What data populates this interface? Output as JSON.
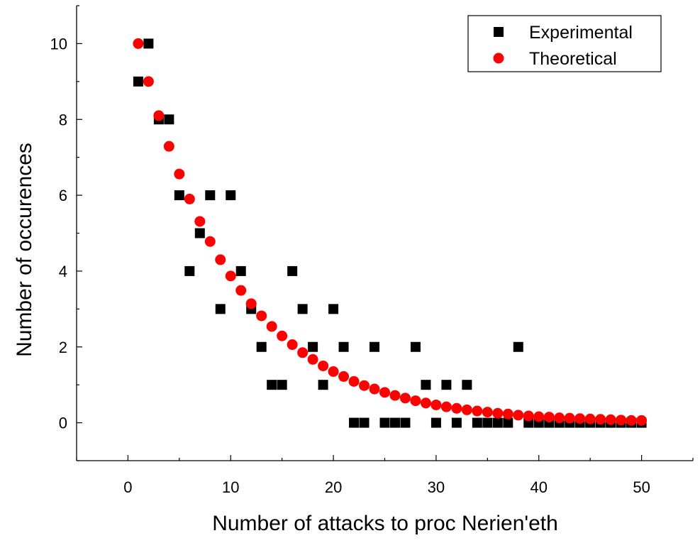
{
  "chart_data": {
    "type": "scatter",
    "title": "",
    "xlabel": "Number of attacks to proc Nerien'eth",
    "ylabel": "Number of occurences",
    "xlim": [
      -5,
      55
    ],
    "ylim": [
      -1,
      11
    ],
    "x_ticks": [
      0,
      10,
      20,
      30,
      40,
      50
    ],
    "y_ticks": [
      0,
      2,
      4,
      6,
      8,
      10
    ],
    "x_tick_labels": [
      "0",
      "10",
      "20",
      "30",
      "40",
      "50"
    ],
    "y_tick_labels": [
      "0",
      "2",
      "4",
      "6",
      "8",
      "10"
    ],
    "grid": false,
    "legend_position": "top-right",
    "series": [
      {
        "name": "Experimental",
        "marker": "square",
        "color": "#000000",
        "points": [
          [
            1,
            9
          ],
          [
            2,
            10
          ],
          [
            3,
            8
          ],
          [
            4,
            8
          ],
          [
            5,
            6
          ],
          [
            6,
            4
          ],
          [
            7,
            5
          ],
          [
            8,
            6
          ],
          [
            9,
            3
          ],
          [
            10,
            6
          ],
          [
            11,
            4
          ],
          [
            12,
            3
          ],
          [
            13,
            2
          ],
          [
            14,
            1
          ],
          [
            15,
            1
          ],
          [
            16,
            4
          ],
          [
            17,
            3
          ],
          [
            18,
            2
          ],
          [
            19,
            1
          ],
          [
            20,
            3
          ],
          [
            21,
            2
          ],
          [
            22,
            0
          ],
          [
            23,
            0
          ],
          [
            24,
            2
          ],
          [
            25,
            0
          ],
          [
            26,
            0
          ],
          [
            27,
            0
          ],
          [
            28,
            2
          ],
          [
            29,
            1
          ],
          [
            30,
            0
          ],
          [
            31,
            1
          ],
          [
            32,
            0
          ],
          [
            33,
            1
          ],
          [
            34,
            0
          ],
          [
            35,
            0
          ],
          [
            36,
            0
          ],
          [
            37,
            0
          ],
          [
            38,
            2
          ],
          [
            39,
            0
          ],
          [
            40,
            0
          ],
          [
            41,
            0
          ],
          [
            42,
            0
          ],
          [
            43,
            0
          ],
          [
            44,
            0
          ],
          [
            45,
            0
          ],
          [
            46,
            0
          ],
          [
            47,
            0
          ],
          [
            48,
            0
          ],
          [
            49,
            0
          ],
          [
            50,
            0
          ]
        ]
      },
      {
        "name": "Theoretical",
        "marker": "circle",
        "color": "#ff0000",
        "points": [
          [
            1,
            10.0
          ],
          [
            2,
            9.0
          ],
          [
            3,
            8.1
          ],
          [
            4,
            7.29
          ],
          [
            5,
            6.56
          ],
          [
            6,
            5.9
          ],
          [
            7,
            5.31
          ],
          [
            8,
            4.78
          ],
          [
            9,
            4.3
          ],
          [
            10,
            3.87
          ],
          [
            11,
            3.49
          ],
          [
            12,
            3.14
          ],
          [
            13,
            2.82
          ],
          [
            14,
            2.54
          ],
          [
            15,
            2.29
          ],
          [
            16,
            2.06
          ],
          [
            17,
            1.85
          ],
          [
            18,
            1.67
          ],
          [
            19,
            1.5
          ],
          [
            20,
            1.35
          ],
          [
            21,
            1.22
          ],
          [
            22,
            1.09
          ],
          [
            23,
            0.98
          ],
          [
            24,
            0.89
          ],
          [
            25,
            0.8
          ],
          [
            26,
            0.72
          ],
          [
            27,
            0.65
          ],
          [
            28,
            0.58
          ],
          [
            29,
            0.52
          ],
          [
            30,
            0.47
          ],
          [
            31,
            0.42
          ],
          [
            32,
            0.38
          ],
          [
            33,
            0.34
          ],
          [
            34,
            0.31
          ],
          [
            35,
            0.28
          ],
          [
            36,
            0.25
          ],
          [
            37,
            0.23
          ],
          [
            38,
            0.2
          ],
          [
            39,
            0.18
          ],
          [
            40,
            0.16
          ],
          [
            41,
            0.15
          ],
          [
            42,
            0.13
          ],
          [
            43,
            0.12
          ],
          [
            44,
            0.11
          ],
          [
            45,
            0.1
          ],
          [
            46,
            0.09
          ],
          [
            47,
            0.08
          ],
          [
            48,
            0.07
          ],
          [
            49,
            0.06
          ],
          [
            50,
            0.06
          ]
        ]
      }
    ]
  }
}
